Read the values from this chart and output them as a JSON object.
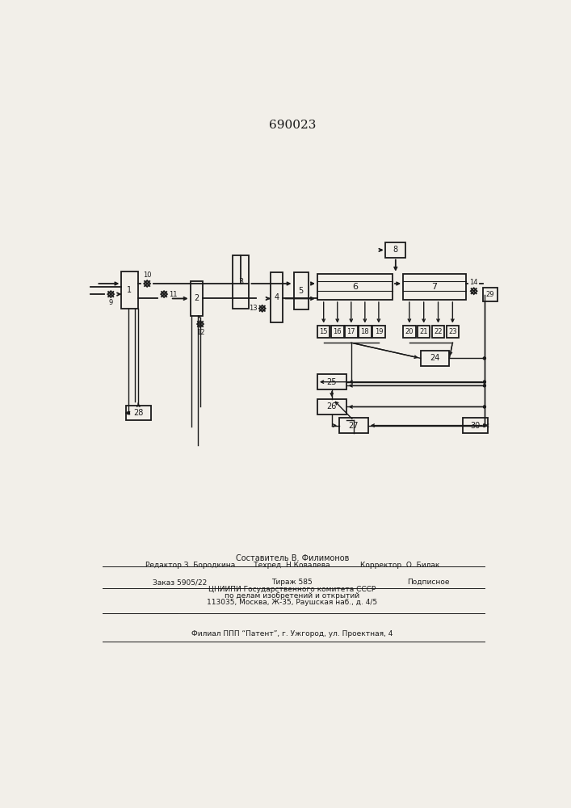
{
  "title_number": "690023",
  "bg_color": "#f2efe9",
  "line_color": "#1a1a1a",
  "box_fill": "#f2efe9",
  "footer_lines": [
    "Составитель В. Филимонов",
    "Редактор З. Бородкина        Техред  Н.Ковалева             Корректор  О. Билак",
    "Заказ 5905/22              Тираж 585                  Подписное",
    "ЦНИИПИ Государственного комитета СССР",
    "по делам изобретений и открытий",
    "113035, Москва, Ж-35, Раушская наб., д. 4/5",
    "Филиал ППП “Патент”, г. Ужгород, ул. Проектная, 4"
  ]
}
